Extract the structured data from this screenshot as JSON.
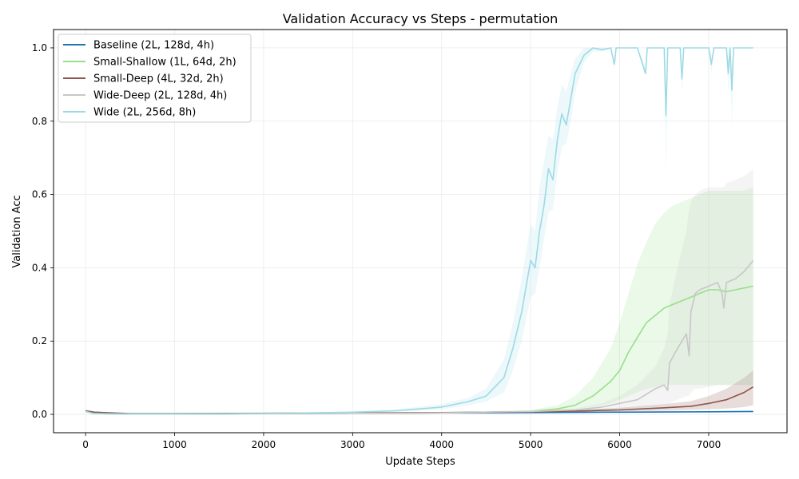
{
  "chart_data": {
    "type": "line",
    "title": "Validation Accuracy vs Steps - permutation",
    "xlabel": "Update Steps",
    "ylabel": "Validation Acc",
    "xlim": [
      -360,
      7880
    ],
    "ylim": [
      -0.05,
      1.05
    ],
    "xticks": [
      0,
      1000,
      2000,
      3000,
      4000,
      5000,
      6000,
      7000
    ],
    "yticks": [
      0.0,
      0.2,
      0.4,
      0.6,
      0.8,
      1.0
    ],
    "grid": true,
    "legend_position": "top-left",
    "series": [
      {
        "name": "Baseline (2L, 128d, 4h)",
        "color": "#1f77b4",
        "x": [
          0,
          100,
          500,
          1000,
          2000,
          3000,
          4000,
          5000,
          6000,
          7000,
          7500
        ],
        "y": [
          0.008,
          0.002,
          0.001,
          0.001,
          0.002,
          0.003,
          0.004,
          0.005,
          0.006,
          0.007,
          0.008
        ],
        "band_low": [
          0.006,
          0.001,
          0.0,
          0.0,
          0.001,
          0.002,
          0.003,
          0.004,
          0.005,
          0.006,
          0.006
        ],
        "band_high": [
          0.01,
          0.003,
          0.002,
          0.002,
          0.003,
          0.004,
          0.005,
          0.006,
          0.008,
          0.009,
          0.01
        ]
      },
      {
        "name": "Small-Shallow (1L, 64d, 2h)",
        "color": "#98df8a",
        "x": [
          0,
          100,
          500,
          1000,
          2000,
          3000,
          4000,
          5000,
          5300,
          5500,
          5700,
          5900,
          6000,
          6100,
          6200,
          6300,
          6400,
          6500,
          6600,
          6700,
          6800,
          6900,
          7000,
          7100,
          7200,
          7300,
          7400,
          7500
        ],
        "y": [
          0.008,
          0.002,
          0.001,
          0.001,
          0.002,
          0.003,
          0.004,
          0.008,
          0.015,
          0.025,
          0.05,
          0.09,
          0.12,
          0.17,
          0.21,
          0.25,
          0.27,
          0.29,
          0.3,
          0.31,
          0.32,
          0.33,
          0.34,
          0.34,
          0.335,
          0.34,
          0.345,
          0.35
        ],
        "band_low": [
          0.006,
          0.001,
          0.0,
          0.0,
          0.001,
          0.002,
          0.003,
          0.006,
          0.01,
          0.015,
          0.02,
          0.03,
          0.04,
          0.05,
          0.06,
          0.07,
          0.075,
          0.08,
          0.08,
          0.08,
          0.08,
          0.08,
          0.08,
          0.08,
          0.08,
          0.08,
          0.08,
          0.08
        ],
        "band_high": [
          0.01,
          0.003,
          0.002,
          0.002,
          0.003,
          0.004,
          0.006,
          0.012,
          0.025,
          0.05,
          0.1,
          0.18,
          0.25,
          0.33,
          0.41,
          0.47,
          0.52,
          0.55,
          0.57,
          0.58,
          0.59,
          0.6,
          0.61,
          0.61,
          0.61,
          0.61,
          0.61,
          0.62
        ]
      },
      {
        "name": "Small-Deep (4L, 32d, 2h)",
        "color": "#8c564b",
        "x": [
          0,
          100,
          500,
          1000,
          2000,
          3000,
          4000,
          5000,
          5500,
          6000,
          6500,
          6800,
          7000,
          7200,
          7400,
          7500
        ],
        "y": [
          0.01,
          0.006,
          0.002,
          0.002,
          0.003,
          0.004,
          0.005,
          0.007,
          0.009,
          0.012,
          0.018,
          0.022,
          0.03,
          0.04,
          0.06,
          0.075
        ],
        "band_low": [
          0.008,
          0.004,
          0.001,
          0.001,
          0.002,
          0.003,
          0.004,
          0.005,
          0.006,
          0.008,
          0.01,
          0.012,
          0.014,
          0.016,
          0.02,
          0.025
        ],
        "band_high": [
          0.012,
          0.008,
          0.003,
          0.003,
          0.004,
          0.005,
          0.006,
          0.009,
          0.012,
          0.018,
          0.028,
          0.036,
          0.05,
          0.07,
          0.1,
          0.12
        ]
      },
      {
        "name": "Wide-Deep (2L, 128d, 4h)",
        "color": "#c7c7c7",
        "x": [
          0,
          100,
          500,
          1000,
          2000,
          3000,
          4000,
          5000,
          5500,
          5800,
          6000,
          6200,
          6400,
          6500,
          6540,
          6560,
          6650,
          6750,
          6780,
          6800,
          6850,
          6900,
          7000,
          7100,
          7150,
          7170,
          7200,
          7300,
          7400,
          7500
        ],
        "y": [
          0.008,
          0.002,
          0.001,
          0.001,
          0.002,
          0.003,
          0.004,
          0.008,
          0.012,
          0.02,
          0.03,
          0.04,
          0.07,
          0.08,
          0.065,
          0.14,
          0.18,
          0.22,
          0.16,
          0.28,
          0.33,
          0.34,
          0.35,
          0.36,
          0.33,
          0.29,
          0.36,
          0.37,
          0.39,
          0.42
        ],
        "band_low": [
          0.006,
          0.001,
          0.0,
          0.0,
          0.001,
          0.002,
          0.003,
          0.006,
          0.008,
          0.01,
          0.012,
          0.015,
          0.02,
          0.025,
          0.025,
          0.03,
          0.04,
          0.05,
          0.05,
          0.06,
          0.07,
          0.07,
          0.075,
          0.08,
          0.08,
          0.08,
          0.08,
          0.08,
          0.08,
          0.08
        ],
        "band_high": [
          0.01,
          0.003,
          0.002,
          0.002,
          0.003,
          0.004,
          0.006,
          0.01,
          0.016,
          0.03,
          0.05,
          0.08,
          0.13,
          0.18,
          0.22,
          0.3,
          0.4,
          0.5,
          0.56,
          0.58,
          0.6,
          0.61,
          0.62,
          0.62,
          0.62,
          0.62,
          0.63,
          0.64,
          0.65,
          0.67
        ]
      },
      {
        "name": "Wide (2L, 256d, 8h)",
        "color": "#9edae5",
        "x": [
          0,
          100,
          500,
          1000,
          2000,
          3000,
          3500,
          4000,
          4300,
          4500,
          4700,
          4800,
          4900,
          5000,
          5050,
          5100,
          5150,
          5200,
          5250,
          5300,
          5350,
          5400,
          5450,
          5500,
          5600,
          5700,
          5800,
          5900,
          5940,
          5960,
          6000,
          6200,
          6290,
          6310,
          6400,
          6500,
          6520,
          6540,
          6600,
          6680,
          6700,
          6720,
          6800,
          7000,
          7030,
          7060,
          7200,
          7220,
          7240,
          7260,
          7280,
          7300,
          7500
        ],
        "y": [
          0.008,
          0.002,
          0.001,
          0.001,
          0.002,
          0.006,
          0.01,
          0.02,
          0.035,
          0.05,
          0.1,
          0.18,
          0.28,
          0.42,
          0.4,
          0.5,
          0.57,
          0.67,
          0.64,
          0.75,
          0.82,
          0.79,
          0.86,
          0.93,
          0.98,
          1.0,
          0.995,
          1.0,
          0.955,
          1.0,
          1.0,
          1.0,
          0.93,
          1.0,
          1.0,
          1.0,
          0.815,
          1.0,
          1.0,
          1.0,
          0.915,
          1.0,
          1.0,
          1.0,
          0.955,
          1.0,
          1.0,
          0.93,
          1.0,
          0.885,
          1.0,
          1.0,
          1.0
        ],
        "band_low": [
          0.006,
          0.001,
          0.0,
          0.0,
          0.001,
          0.004,
          0.007,
          0.014,
          0.025,
          0.035,
          0.06,
          0.12,
          0.2,
          0.32,
          0.33,
          0.4,
          0.48,
          0.55,
          0.56,
          0.66,
          0.73,
          0.74,
          0.8,
          0.88,
          0.96,
          0.99,
          0.99,
          1.0,
          0.95,
          1.0,
          1.0,
          1.0,
          0.93,
          1.0,
          1.0,
          1.0,
          0.66,
          1.0,
          1.0,
          1.0,
          0.88,
          1.0,
          1.0,
          1.0,
          0.93,
          1.0,
          1.0,
          0.87,
          1.0,
          0.78,
          1.0,
          1.0,
          1.0
        ],
        "band_high": [
          0.01,
          0.003,
          0.002,
          0.002,
          0.003,
          0.008,
          0.014,
          0.028,
          0.045,
          0.07,
          0.15,
          0.25,
          0.37,
          0.52,
          0.5,
          0.62,
          0.69,
          0.76,
          0.75,
          0.84,
          0.9,
          0.88,
          0.93,
          0.97,
          1.0,
          1.0,
          1.0,
          1.0,
          0.96,
          1.0,
          1.0,
          1.0,
          0.95,
          1.0,
          1.0,
          1.0,
          0.9,
          1.0,
          1.0,
          1.0,
          0.95,
          1.0,
          1.0,
          1.0,
          0.98,
          1.0,
          1.0,
          0.97,
          1.0,
          0.95,
          1.0,
          1.0,
          1.0
        ]
      }
    ]
  }
}
